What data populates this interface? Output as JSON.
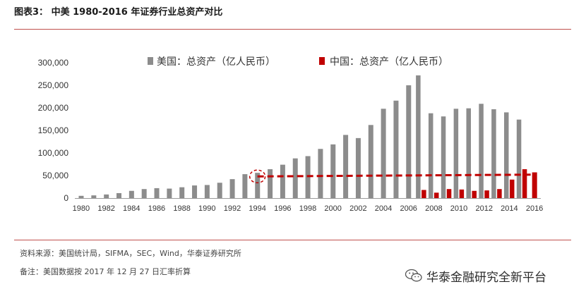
{
  "header": {
    "title": "图表3：  中美 1980-2016 年证券行业总资产对比"
  },
  "footer": {
    "source": "资料来源：美国统计局，SIFMA，SEC，Wind，华泰证券研究所",
    "note": "备注：美国数据按 2017 年 12 月 27 日汇率折算",
    "watermark": "华泰金融研究全新平台"
  },
  "colors": {
    "us": "#8c8c8c",
    "china": "#c00000",
    "rule": "#c0504d"
  },
  "chart_data": {
    "type": "bar",
    "title": "",
    "xlabel": "",
    "ylabel": "",
    "ylim": [
      0,
      300000
    ],
    "yticks": [
      "0",
      "50,000",
      "100,000",
      "150,000",
      "200,000",
      "250,000",
      "300,000"
    ],
    "ytick_values": [
      0,
      50000,
      100000,
      150000,
      200000,
      250000,
      300000
    ],
    "categories": [
      1980,
      1981,
      1982,
      1983,
      1984,
      1985,
      1986,
      1987,
      1988,
      1989,
      1990,
      1991,
      1992,
      1993,
      1994,
      1995,
      1996,
      1997,
      1998,
      1999,
      2000,
      2001,
      2002,
      2003,
      2004,
      2005,
      2006,
      2007,
      2008,
      2009,
      2010,
      2011,
      2012,
      2013,
      2014,
      2015,
      2016
    ],
    "xtick_labels": [
      "1980",
      "1982",
      "1984",
      "1986",
      "1988",
      "1990",
      "1992",
      "1994",
      "1996",
      "1998",
      "2000",
      "2002",
      "2004",
      "2006",
      "2008",
      "2010",
      "2012",
      "2014",
      "2016"
    ],
    "series": [
      {
        "name": "美国：总资产（亿人民币）",
        "color": "#8c8c8c",
        "values": [
          5000,
          6000,
          8000,
          11000,
          16000,
          20000,
          22000,
          21000,
          24000,
          28000,
          29000,
          34000,
          42000,
          53000,
          56000,
          64000,
          74000,
          88000,
          93000,
          109000,
          119000,
          140000,
          133000,
          162000,
          198000,
          216000,
          250000,
          272000,
          188000,
          181000,
          198000,
          199000,
          209000,
          197000,
          190000,
          174000,
          null
        ]
      },
      {
        "name": "中国：总资产（亿人民币）",
        "color": "#c00000",
        "values": [
          null,
          null,
          null,
          null,
          null,
          null,
          null,
          null,
          null,
          null,
          null,
          null,
          null,
          null,
          null,
          null,
          null,
          null,
          null,
          null,
          null,
          null,
          null,
          null,
          null,
          null,
          null,
          18000,
          12000,
          20000,
          19000,
          16000,
          17000,
          20000,
          41000,
          64000,
          57000
        ]
      }
    ],
    "annotations": {
      "trend_line": {
        "type": "dashed",
        "color": "#c00000",
        "x_start": 1994,
        "x_end": 2016,
        "y_start": 48000,
        "y_end": 52000
      },
      "highlight_circle": {
        "type": "dashed",
        "color": "#c00000",
        "x": 1994,
        "y": 48000
      }
    }
  }
}
